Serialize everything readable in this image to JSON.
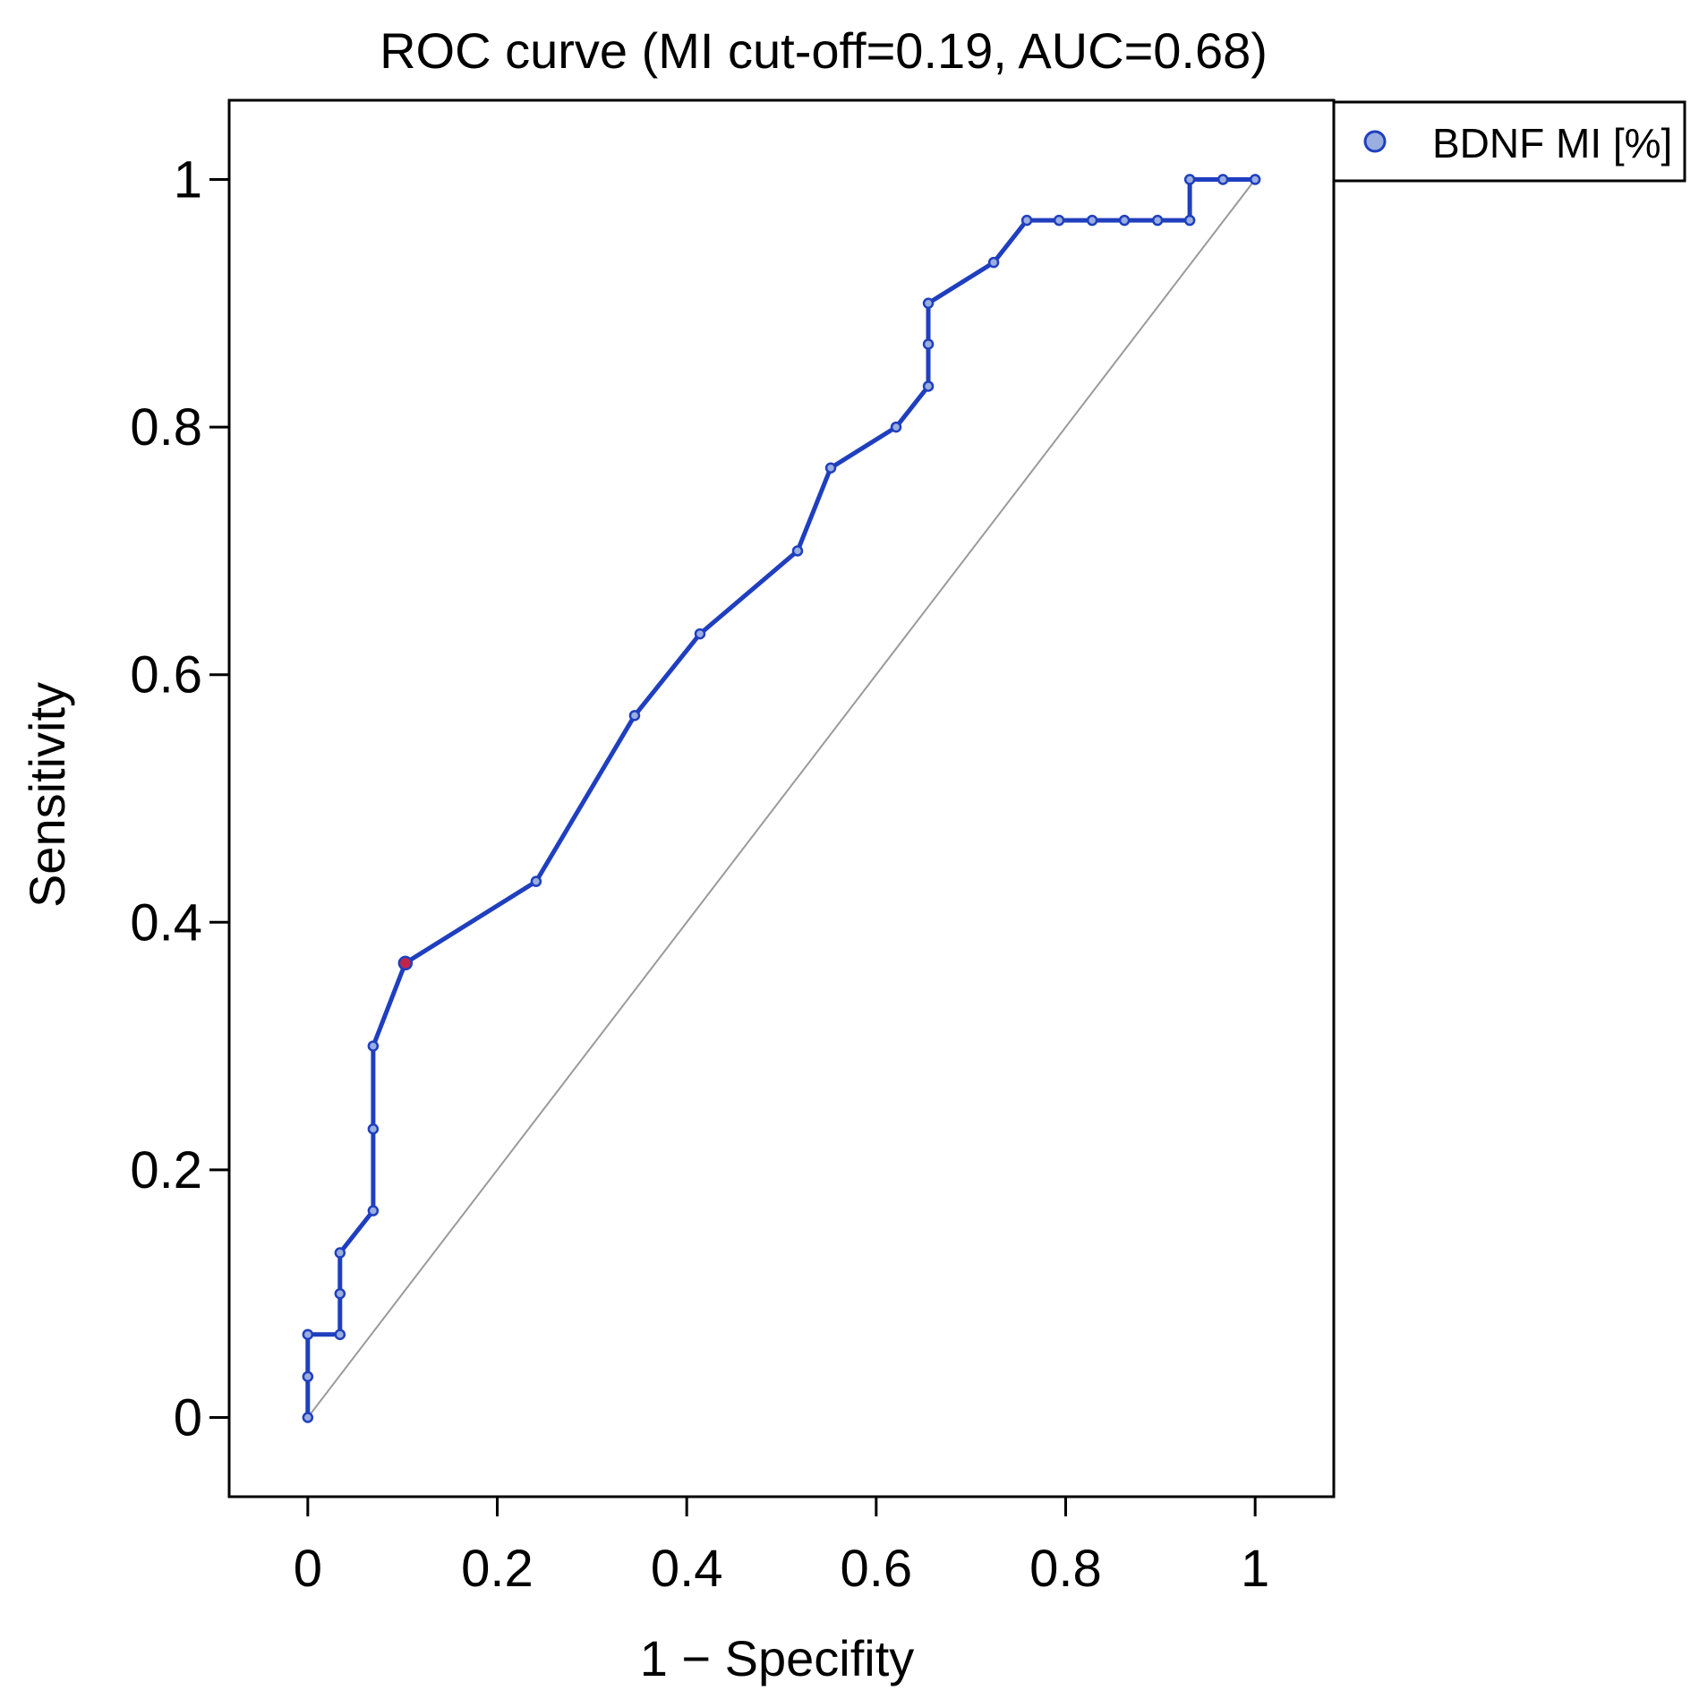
{
  "chart_data": {
    "type": "line",
    "title": "ROC curve (MI cut-off=0.19, AUC=0.68)",
    "xlabel": "1 − Specifity",
    "ylabel": "Sensitivity",
    "xlim": [
      -0.083,
      1.083
    ],
    "ylim": [
      -0.064,
      1.064
    ],
    "xticks": [
      0,
      0.2,
      0.4,
      0.6,
      0.8,
      1
    ],
    "xtick_labels": [
      "0",
      "0.2",
      "0.4",
      "0.6",
      "0.8",
      "1"
    ],
    "yticks": [
      0,
      0.2,
      0.4,
      0.6,
      0.8,
      1
    ],
    "ytick_labels": [
      "0",
      "0.2",
      "0.4",
      "0.6",
      "0.8",
      "1"
    ],
    "grid": false,
    "legend_position": "outside-top-right",
    "series": [
      {
        "name": "BDNF MI [%]",
        "color": "#1f3fbf",
        "marker_fill": "#9aaee0",
        "x": [
          0,
          0,
          0,
          0.034,
          0.034,
          0.034,
          0.069,
          0.069,
          0.069,
          0.103,
          0.241,
          0.345,
          0.414,
          0.517,
          0.552,
          0.621,
          0.655,
          0.655,
          0.655,
          0.724,
          0.759,
          0.793,
          0.828,
          0.862,
          0.897,
          0.931,
          0.931,
          0.966,
          1.0
        ],
        "y": [
          0,
          0.033,
          0.067,
          0.067,
          0.1,
          0.133,
          0.167,
          0.233,
          0.3,
          0.367,
          0.433,
          0.567,
          0.633,
          0.7,
          0.767,
          0.8,
          0.833,
          0.867,
          0.9,
          0.933,
          0.967,
          0.967,
          0.967,
          0.967,
          0.967,
          0.967,
          1.0,
          1.0,
          1.0
        ]
      }
    ],
    "reference_line": {
      "x": [
        0,
        1
      ],
      "y": [
        0,
        1
      ],
      "color": "#9a9a9a"
    },
    "cutoff_point": {
      "x": 0.103,
      "y": 0.367,
      "color": "#c0264a"
    }
  }
}
